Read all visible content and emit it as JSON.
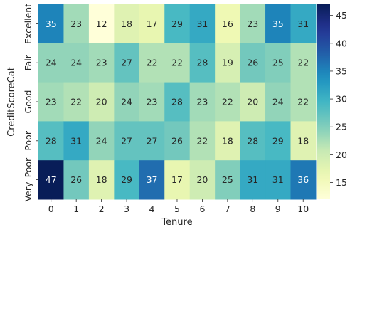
{
  "chart_data": {
    "type": "heatmap",
    "title": "",
    "xlabel": "Tenure",
    "ylabel": "CreditScoreCat",
    "x_categories": [
      "0",
      "1",
      "2",
      "3",
      "4",
      "5",
      "6",
      "7",
      "8",
      "9",
      "10"
    ],
    "y_categories": [
      "Excellent",
      "Fair",
      "Good",
      "Poor",
      "Very_Poor"
    ],
    "values": [
      [
        35,
        23,
        12,
        18,
        17,
        29,
        31,
        16,
        23,
        35,
        31
      ],
      [
        24,
        24,
        23,
        27,
        22,
        22,
        28,
        19,
        26,
        25,
        22
      ],
      [
        23,
        22,
        20,
        24,
        23,
        28,
        23,
        22,
        20,
        24,
        22
      ],
      [
        28,
        31,
        24,
        27,
        27,
        26,
        22,
        18,
        28,
        29,
        18
      ],
      [
        47,
        26,
        18,
        29,
        37,
        17,
        20,
        25,
        31,
        31,
        36
      ]
    ],
    "colormap": "YlGnBu",
    "vmin": 12,
    "vmax": 47,
    "colorbar_ticks": [
      15,
      20,
      25,
      30,
      35,
      40,
      45
    ],
    "annotated": true
  }
}
